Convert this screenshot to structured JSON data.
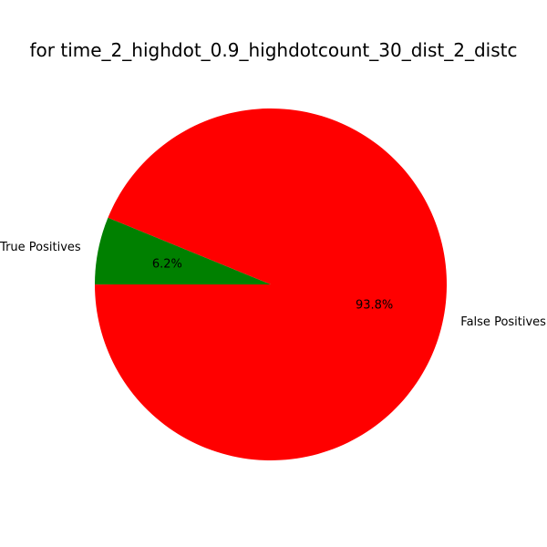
{
  "chart_data": {
    "type": "pie",
    "title": "for time_2_highdot_0.9_highdotcount_30_dist_2_distc",
    "slices": [
      {
        "label": "True Positives",
        "value": 6.2,
        "pct_label": "6.2%",
        "color": "#008000"
      },
      {
        "label": "False Positives",
        "value": 93.8,
        "pct_label": "93.8%",
        "color": "#ff0000"
      }
    ],
    "start_angle_deg": 157.7,
    "direction": "counterclockwise"
  }
}
